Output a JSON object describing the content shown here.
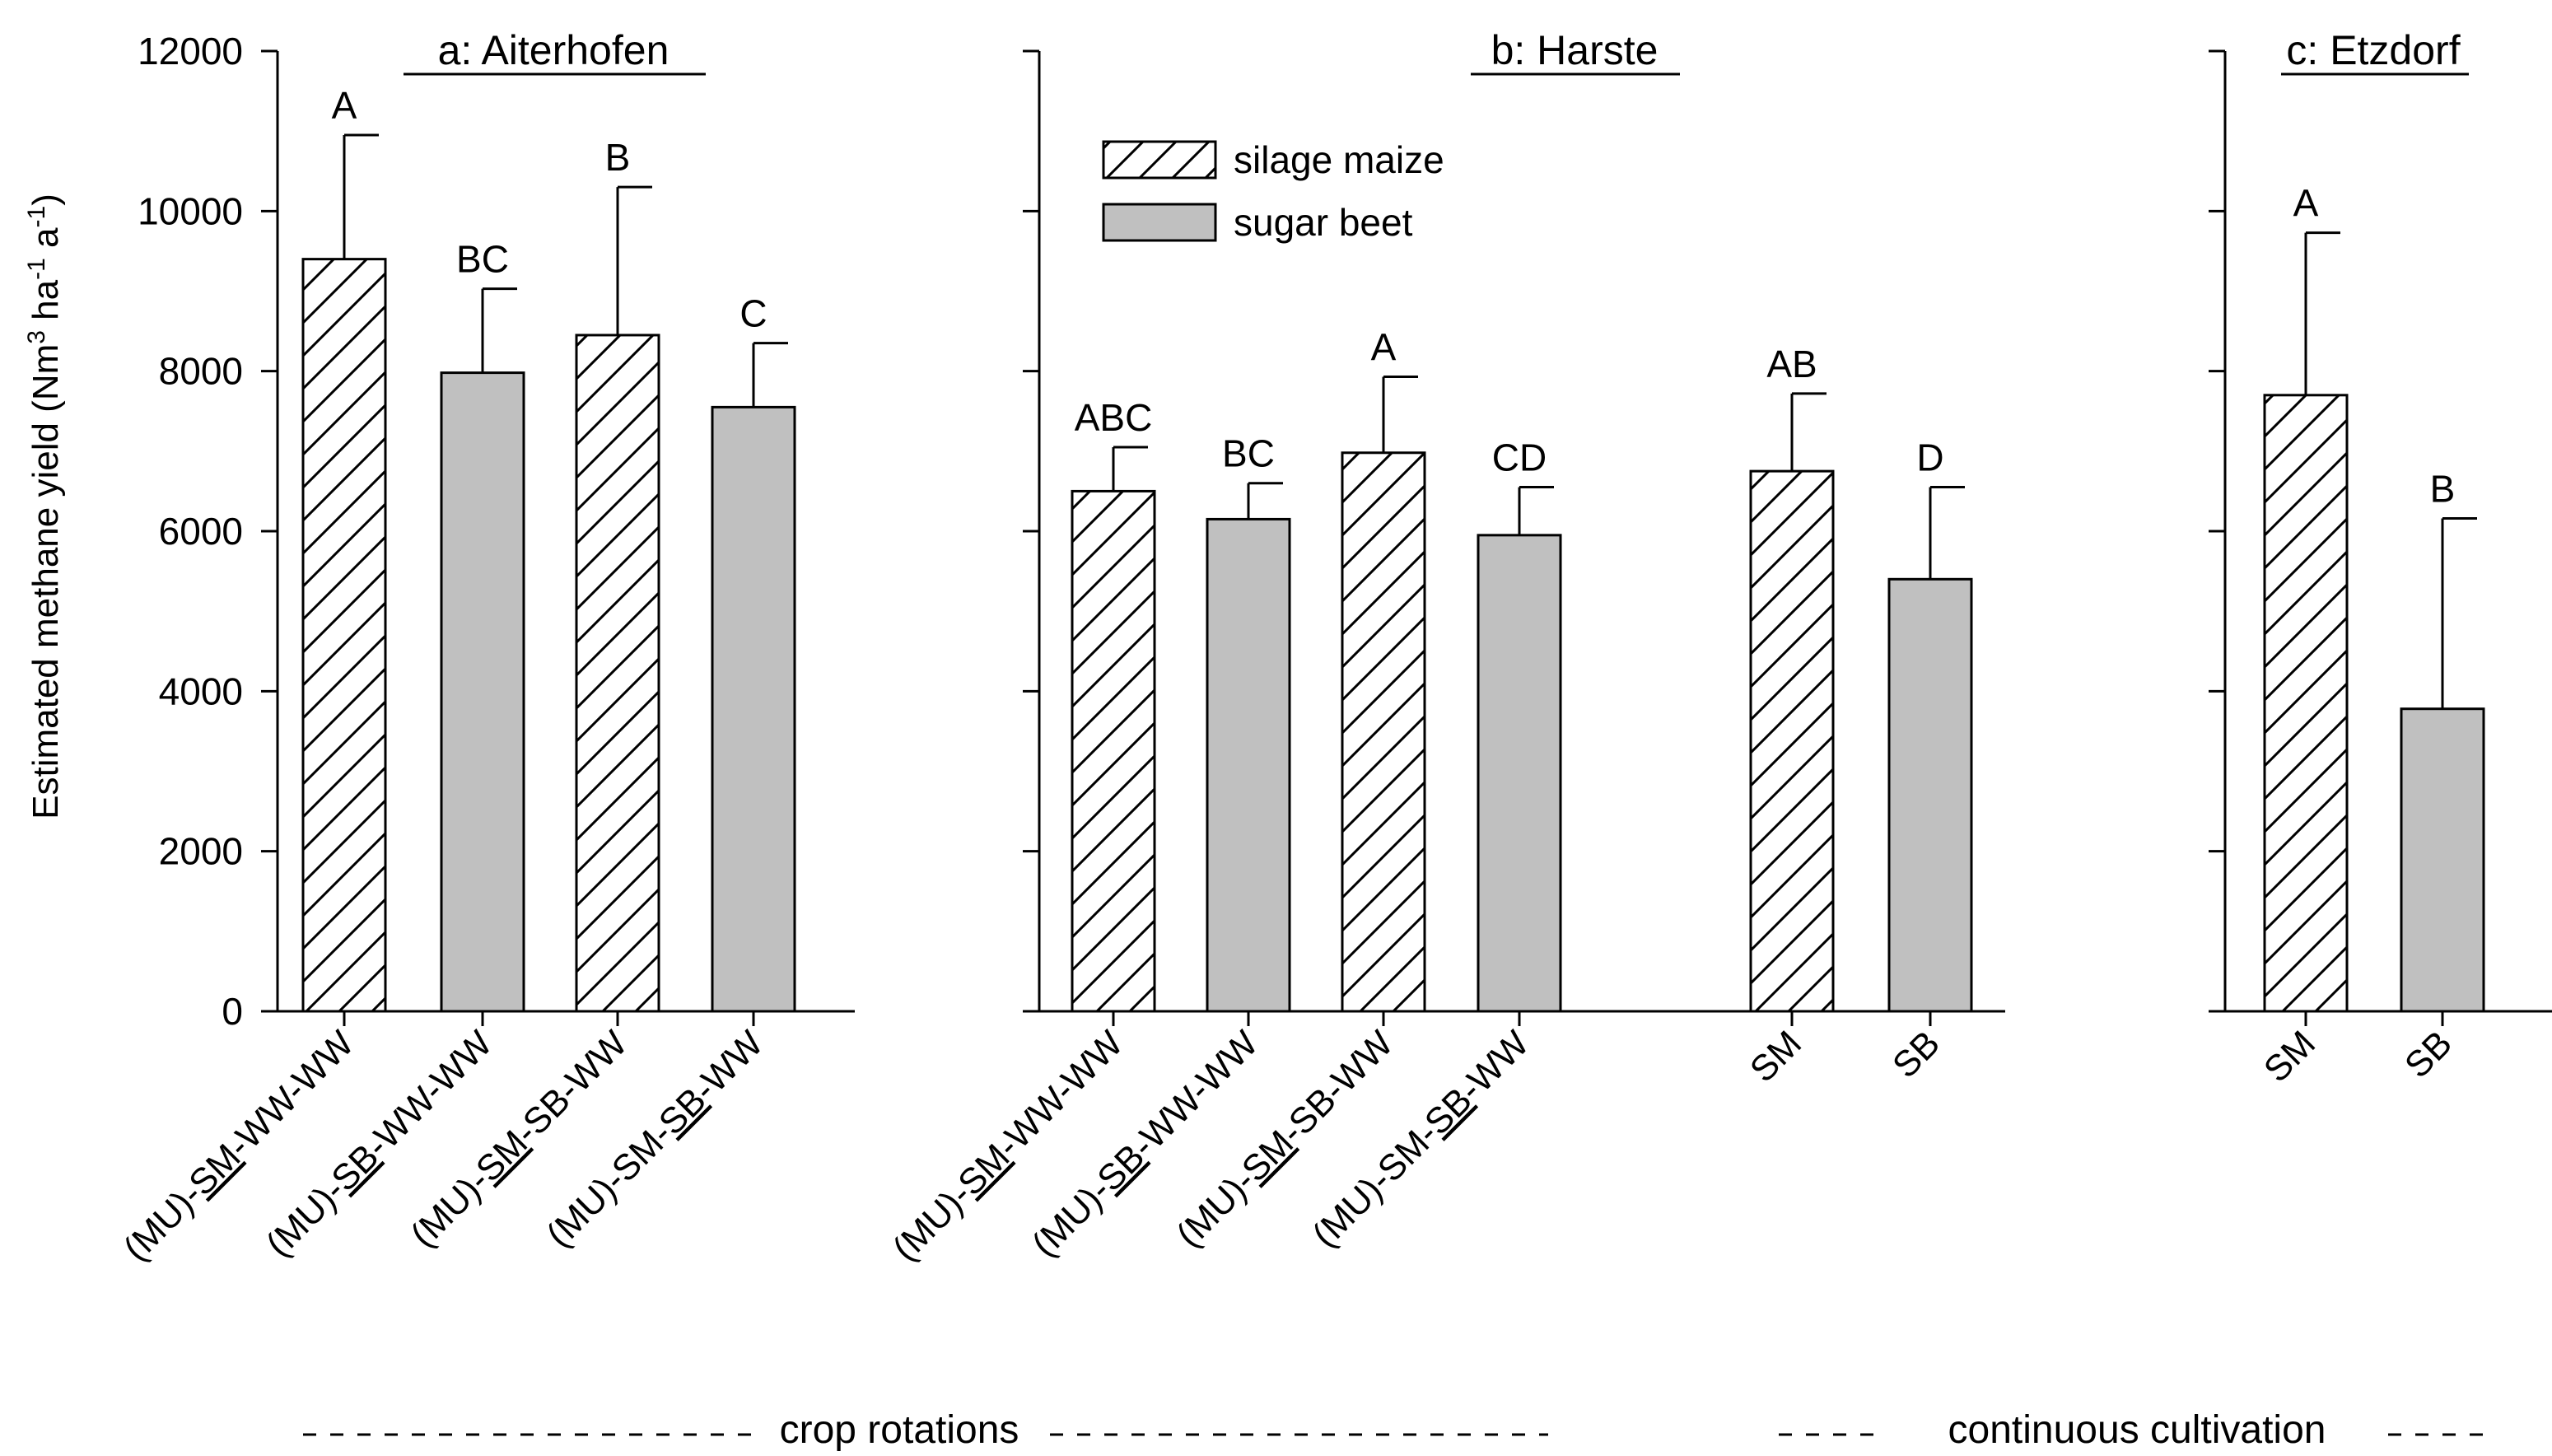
{
  "y_axis_label": "Estimated methane yield (Nm3 ha-1 a-1)",
  "y_axis_label_parts": {
    "main": "Estimated methane yield (Nm",
    "sup1": "3",
    "mid1": " ha",
    "sup2": "-1",
    "mid2": " a",
    "sup3": "-1",
    "end": ")"
  },
  "legend": [
    {
      "name": "silage maize",
      "pattern": "hatched"
    },
    {
      "name": "sugar beet",
      "pattern": "gray"
    }
  ],
  "colors": {
    "sugar_beet_fill": "#c0c0c0",
    "silage_maize_fill": "#ffffff",
    "line": "#000000"
  },
  "group_labels": {
    "crop_rotations": "crop rotations",
    "continuous_cultivation": "continuous cultivation"
  },
  "chart_data": [
    {
      "type": "bar",
      "title": "a: Aiterhofen",
      "ylabel": "Estimated methane yield (Nm3 ha-1 a-1)",
      "ylim": [
        0,
        12000
      ],
      "yticks": [
        0,
        2000,
        4000,
        6000,
        8000,
        10000,
        12000
      ],
      "show_tick_labels": true,
      "categories": [
        {
          "pre": "(MU)-",
          "ul": "SM",
          "post": "-WW-WW",
          "full": "(MU)-SM-WW-WW"
        },
        {
          "pre": "(MU)-",
          "ul": "SB",
          "post": "-WW-WW",
          "full": "(MU)-SB-WW-WW"
        },
        {
          "pre": "(MU)-",
          "ul": "SM",
          "post": "-SB-WW",
          "full": "(MU)-SM-SB-WW"
        },
        {
          "pre": "(MU)-SM-",
          "ul": "SB",
          "post": "-WW",
          "full": "(MU)-SM-SB-WW"
        }
      ],
      "crops": [
        "silage maize",
        "sugar beet",
        "silage maize",
        "sugar beet"
      ],
      "values": [
        9400,
        7980,
        8450,
        7550
      ],
      "errors": [
        1550,
        1050,
        1850,
        800
      ],
      "letters": [
        "A",
        "BC",
        "B",
        "C"
      ]
    },
    {
      "type": "bar",
      "title": "b: Harste",
      "ylim": [
        0,
        12000
      ],
      "yticks": [
        0,
        2000,
        4000,
        6000,
        8000,
        10000,
        12000
      ],
      "show_tick_labels": false,
      "categories": [
        {
          "pre": "(MU)-",
          "ul": "SM",
          "post": "-WW-WW",
          "full": "(MU)-SM-WW-WW"
        },
        {
          "pre": "(MU)-",
          "ul": "SB",
          "post": "-WW-WW",
          "full": "(MU)-SB-WW-WW"
        },
        {
          "pre": "(MU)-",
          "ul": "SM",
          "post": "-SB-WW",
          "full": "(MU)-SM-SB-WW"
        },
        {
          "pre": "(MU)-SM-",
          "ul": "SB",
          "post": "-WW",
          "full": "(MU)-SM-SB-WW"
        },
        {
          "pre": "SM",
          "ul": "",
          "post": "",
          "full": "SM"
        },
        {
          "pre": "SB",
          "ul": "",
          "post": "",
          "full": "SB"
        }
      ],
      "crops": [
        "silage maize",
        "sugar beet",
        "silage maize",
        "sugar beet",
        "silage maize",
        "sugar beet"
      ],
      "values": [
        6500,
        6150,
        6980,
        5950,
        6750,
        5400
      ],
      "errors": [
        550,
        450,
        950,
        600,
        970,
        1150
      ],
      "letters": [
        "ABC",
        "BC",
        "A",
        "CD",
        "AB",
        "D"
      ]
    },
    {
      "type": "bar",
      "title": "c: Etzdorf",
      "ylim": [
        0,
        12000
      ],
      "yticks": [
        0,
        2000,
        4000,
        6000,
        8000,
        10000,
        12000
      ],
      "show_tick_labels": false,
      "categories": [
        {
          "pre": "SM",
          "ul": "",
          "post": "",
          "full": "SM"
        },
        {
          "pre": "SB",
          "ul": "",
          "post": "",
          "full": "SB"
        }
      ],
      "crops": [
        "silage maize",
        "sugar beet"
      ],
      "values": [
        7700,
        3780
      ],
      "errors": [
        2030,
        2380
      ],
      "letters": [
        "A",
        "B"
      ]
    }
  ]
}
